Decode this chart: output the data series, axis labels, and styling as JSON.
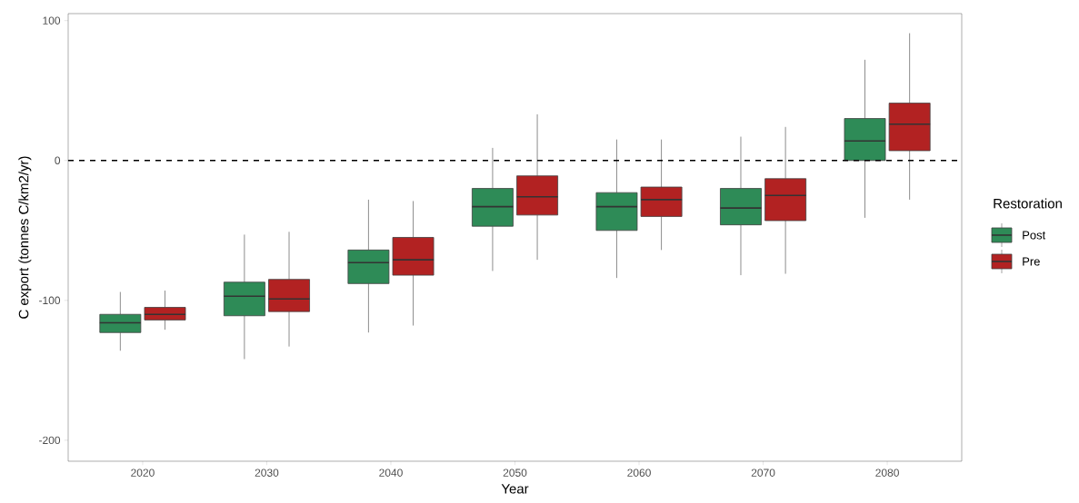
{
  "chart_data": {
    "type": "box",
    "xlabel": "Year",
    "ylabel": "C export (tonnes C/km2/yr)",
    "legend_title": "Restoration",
    "legend": "right",
    "categories": [
      "2020",
      "2030",
      "2040",
      "2050",
      "2060",
      "2070",
      "2080"
    ],
    "ylim": [
      -215,
      105
    ],
    "yticks": [
      -200,
      -100,
      0,
      100
    ],
    "ref_lines": [
      {
        "axis": "y",
        "value": 0,
        "line_style": "dashed",
        "color": "#000000"
      }
    ],
    "series": [
      {
        "name": "Post",
        "color": "#2e8b57",
        "boxes": [
          {
            "low": -136,
            "q1": -123,
            "median": -116,
            "q3": -110,
            "high": -94
          },
          {
            "low": -142,
            "q1": -111,
            "median": -97,
            "q3": -87,
            "high": -53
          },
          {
            "low": -123,
            "q1": -88,
            "median": -73,
            "q3": -64,
            "high": -28
          },
          {
            "low": -79,
            "q1": -47,
            "median": -33,
            "q3": -20,
            "high": 9
          },
          {
            "low": -84,
            "q1": -50,
            "median": -33,
            "q3": -23,
            "high": 15
          },
          {
            "low": -82,
            "q1": -46,
            "median": -34,
            "q3": -20,
            "high": 17
          },
          {
            "low": -41,
            "q1": 0,
            "median": 14,
            "q3": 30,
            "high": 72
          }
        ]
      },
      {
        "name": "Pre",
        "color": "#b22222",
        "boxes": [
          {
            "low": -121,
            "q1": -114,
            "median": -110,
            "q3": -105,
            "high": -93
          },
          {
            "low": -133,
            "q1": -108,
            "median": -99,
            "q3": -85,
            "high": -51
          },
          {
            "low": -118,
            "q1": -82,
            "median": -71,
            "q3": -55,
            "high": -29
          },
          {
            "low": -71,
            "q1": -39,
            "median": -26,
            "q3": -11,
            "high": 33
          },
          {
            "low": -64,
            "q1": -40,
            "median": -28,
            "q3": -19,
            "high": 15
          },
          {
            "low": -81,
            "q1": -43,
            "median": -25,
            "q3": -13,
            "high": 24
          },
          {
            "low": -28,
            "q1": 7,
            "median": 26,
            "q3": 41,
            "high": 91
          }
        ]
      }
    ]
  }
}
